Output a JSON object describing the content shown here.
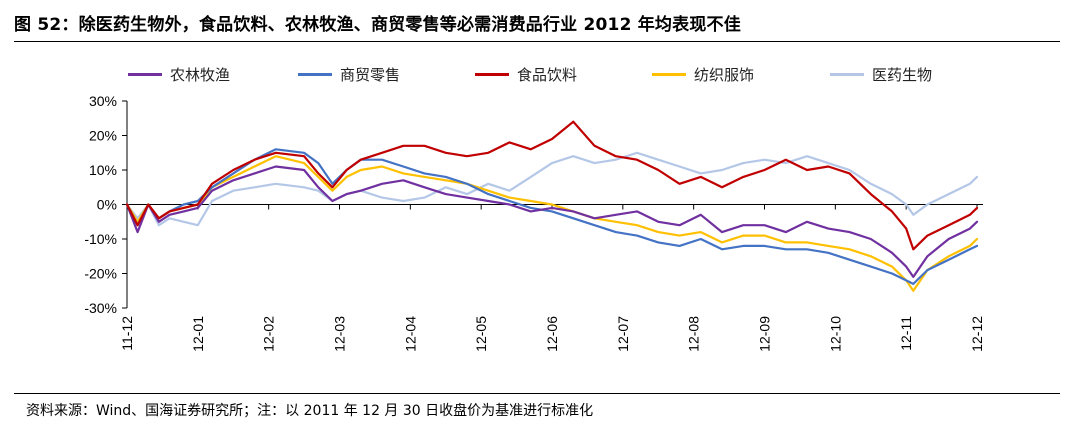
{
  "header": {
    "title": "图 52：除医药生物外，食品饮料、农林牧渔、商贸零售等必需消费品行业 2012 年均表现不佳"
  },
  "footer": {
    "source": "资料来源：Wind、国海证券研究所；注：以 2011 年 12 月 30 日收盘价为基准进行标准化"
  },
  "chart_data": {
    "type": "line",
    "title": "",
    "xlabel": "",
    "ylabel": "",
    "y_unit": "%",
    "ylim": [
      -30,
      30
    ],
    "yticks": [
      "30%",
      "20%",
      "10%",
      "0%",
      "-10%",
      "-20%",
      "-30%"
    ],
    "ytick_values": [
      30,
      20,
      10,
      0,
      -10,
      -20,
      -30
    ],
    "categories": [
      "11-12",
      "12-01",
      "12-02",
      "12-03",
      "12-04",
      "12-05",
      "12-06",
      "12-07",
      "12-08",
      "12-09",
      "12-10",
      "12-11",
      "12-12"
    ],
    "grid": false,
    "legend_position": "top",
    "series": [
      {
        "name": "农林牧渔",
        "color": "#7030A0",
        "x": [
          0,
          0.15,
          0.3,
          0.45,
          0.6,
          0.8,
          1.0,
          1.2,
          1.5,
          1.8,
          2.1,
          2.5,
          2.7,
          2.9,
          3.1,
          3.3,
          3.6,
          3.9,
          4.2,
          4.5,
          4.8,
          5.1,
          5.4,
          5.7,
          6.0,
          6.3,
          6.6,
          6.9,
          7.2,
          7.5,
          7.8,
          8.1,
          8.4,
          8.7,
          9.0,
          9.3,
          9.6,
          9.9,
          10.2,
          10.5,
          10.8,
          11.0,
          11.1,
          11.3,
          11.6,
          11.9,
          12.0
        ],
        "values": [
          0,
          -8,
          0,
          -5,
          -3,
          -2,
          -1,
          4,
          7,
          9,
          11,
          10,
          5,
          1,
          3,
          4,
          6,
          7,
          5,
          3,
          2,
          1,
          0,
          -2,
          -1,
          -2,
          -4,
          -3,
          -2,
          -5,
          -6,
          -3,
          -8,
          -6,
          -6,
          -8,
          -5,
          -7,
          -8,
          -10,
          -14,
          -18,
          -21,
          -15,
          -10,
          -7,
          -5
        ]
      },
      {
        "name": "商贸零售",
        "color": "#4472C4",
        "x": [
          0,
          0.15,
          0.3,
          0.45,
          0.6,
          0.8,
          1.0,
          1.2,
          1.5,
          1.8,
          2.1,
          2.5,
          2.7,
          2.9,
          3.1,
          3.3,
          3.6,
          3.9,
          4.2,
          4.5,
          4.8,
          5.1,
          5.4,
          5.7,
          6.0,
          6.3,
          6.6,
          6.9,
          7.2,
          7.5,
          7.8,
          8.1,
          8.4,
          8.7,
          9.0,
          9.3,
          9.6,
          9.9,
          10.2,
          10.5,
          10.8,
          11.0,
          11.1,
          11.3,
          11.6,
          11.9,
          12.0
        ],
        "values": [
          0,
          -6,
          0,
          -4,
          -2,
          0,
          1,
          5,
          9,
          13,
          16,
          15,
          12,
          6,
          10,
          13,
          13,
          11,
          9,
          8,
          6,
          3,
          1,
          -1,
          -2,
          -4,
          -6,
          -8,
          -9,
          -11,
          -12,
          -10,
          -13,
          -12,
          -12,
          -13,
          -13,
          -14,
          -16,
          -18,
          -20,
          -22,
          -23,
          -19,
          -16,
          -13,
          -12
        ]
      },
      {
        "name": "食品饮料",
        "color": "#C00000",
        "x": [
          0,
          0.15,
          0.3,
          0.45,
          0.6,
          0.8,
          1.0,
          1.2,
          1.5,
          1.8,
          2.1,
          2.5,
          2.7,
          2.9,
          3.1,
          3.3,
          3.6,
          3.9,
          4.2,
          4.5,
          4.8,
          5.1,
          5.4,
          5.7,
          6.0,
          6.3,
          6.6,
          6.9,
          7.2,
          7.5,
          7.8,
          8.1,
          8.4,
          8.7,
          9.0,
          9.3,
          9.6,
          9.9,
          10.2,
          10.5,
          10.8,
          11.0,
          11.1,
          11.3,
          11.6,
          11.9,
          12.0
        ],
        "values": [
          0,
          -6,
          0,
          -4,
          -2,
          -1,
          0,
          6,
          10,
          13,
          15,
          14,
          9,
          5,
          10,
          13,
          15,
          17,
          17,
          15,
          14,
          15,
          18,
          16,
          19,
          24,
          17,
          14,
          13,
          10,
          6,
          8,
          5,
          8,
          10,
          13,
          10,
          11,
          9,
          3,
          -2,
          -7,
          -13,
          -9,
          -6,
          -3,
          -1
        ]
      },
      {
        "name": "纺织服饰",
        "color": "#FFC000",
        "x": [
          0,
          0.15,
          0.3,
          0.45,
          0.6,
          0.8,
          1.0,
          1.2,
          1.5,
          1.8,
          2.1,
          2.5,
          2.7,
          2.9,
          3.1,
          3.3,
          3.6,
          3.9,
          4.2,
          4.5,
          4.8,
          5.1,
          5.4,
          5.7,
          6.0,
          6.3,
          6.6,
          6.9,
          7.2,
          7.5,
          7.8,
          8.1,
          8.4,
          8.7,
          9.0,
          9.3,
          9.6,
          9.9,
          10.2,
          10.5,
          10.8,
          11.0,
          11.1,
          11.3,
          11.6,
          11.9,
          12.0
        ],
        "values": [
          0,
          -5,
          0,
          -4,
          -2,
          -1,
          0,
          5,
          8,
          11,
          14,
          12,
          8,
          4,
          8,
          10,
          11,
          9,
          8,
          7,
          6,
          4,
          2,
          1,
          0,
          -2,
          -4,
          -5,
          -6,
          -8,
          -9,
          -8,
          -11,
          -9,
          -9,
          -11,
          -11,
          -12,
          -13,
          -15,
          -18,
          -22,
          -25,
          -19,
          -15,
          -12,
          -10
        ]
      },
      {
        "name": "医药生物",
        "color": "#B4C7E7",
        "x": [
          0,
          0.15,
          0.3,
          0.45,
          0.6,
          0.8,
          1.0,
          1.2,
          1.5,
          1.8,
          2.1,
          2.5,
          2.7,
          2.9,
          3.1,
          3.3,
          3.6,
          3.9,
          4.2,
          4.5,
          4.8,
          5.1,
          5.4,
          5.7,
          6.0,
          6.3,
          6.6,
          6.9,
          7.2,
          7.5,
          7.8,
          8.1,
          8.4,
          8.7,
          9.0,
          9.3,
          9.6,
          9.9,
          10.2,
          10.5,
          10.8,
          11.0,
          11.1,
          11.3,
          11.6,
          11.9,
          12.0
        ],
        "values": [
          0,
          -4,
          0,
          -6,
          -4,
          -5,
          -6,
          1,
          4,
          5,
          6,
          5,
          4,
          1,
          3,
          4,
          2,
          1,
          2,
          5,
          3,
          6,
          4,
          8,
          12,
          14,
          12,
          13,
          15,
          13,
          11,
          9,
          10,
          12,
          13,
          12,
          14,
          12,
          10,
          6,
          3,
          0,
          -3,
          0,
          3,
          6,
          8
        ]
      }
    ]
  }
}
